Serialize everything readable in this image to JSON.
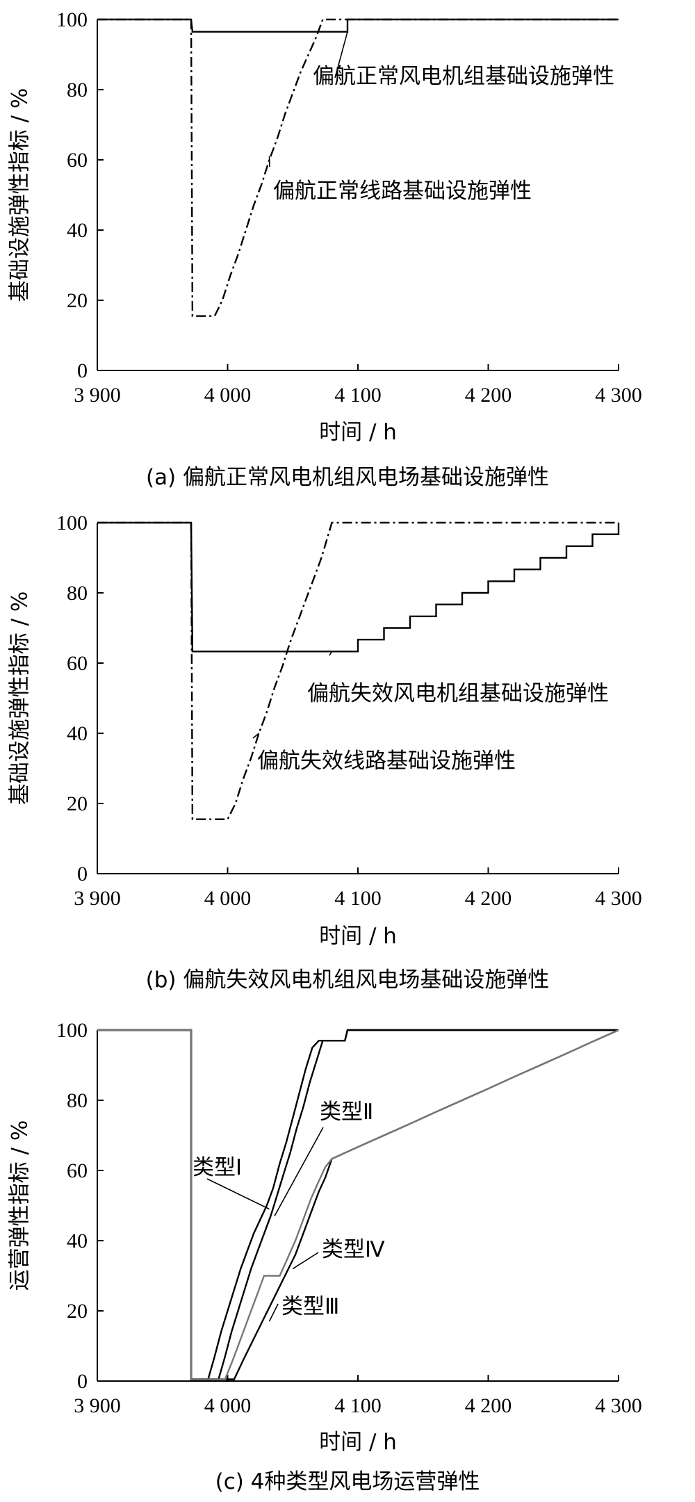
{
  "chart_data": [
    {
      "type": "line",
      "caption": "(a)  偏航正常风电机组风电场基础设施弹性",
      "xlabel": "时间 / h",
      "ylabel": "基础设施弹性指标 / %",
      "xlim": [
        3900,
        4300
      ],
      "ylim": [
        0,
        100
      ],
      "xticks": [
        3900,
        4000,
        4100,
        4200,
        4300
      ],
      "xtick_labels": [
        "3 900",
        "4 000",
        "4 100",
        "4 200",
        "4 300"
      ],
      "yticks": [
        0,
        20,
        40,
        60,
        80,
        100
      ],
      "ytick_labels": [
        "0",
        "20",
        "40",
        "60",
        "80",
        "100"
      ],
      "grid": false,
      "series": [
        {
          "name": "偏航正常风电机组基础设施弹性",
          "style": "solid",
          "x": [
            3900,
            3972,
            3973,
            4092,
            4092,
            4300
          ],
          "y": [
            100,
            100,
            96.5,
            96.5,
            100,
            100
          ]
        },
        {
          "name": "偏航正常线路基础设施弹性",
          "style": "dashdot",
          "x": [
            3900,
            3972,
            3973,
            3990,
            3996,
            4002,
            4008,
            4014,
            4020,
            4026,
            4032,
            4038,
            4044,
            4050,
            4056,
            4062,
            4068,
            4073,
            4300
          ],
          "y": [
            100,
            100,
            15.5,
            15.5,
            20,
            27,
            33,
            40,
            47,
            53,
            60,
            66,
            73,
            79,
            85,
            90,
            95,
            100,
            100
          ]
        }
      ],
      "annotations": [
        {
          "text": "偏航正常风电机组基础设施弹性",
          "x": 4092,
          "y": 96.5
        },
        {
          "text": "偏航正常线路基础设施弹性",
          "x": 4032,
          "y": 61
        }
      ]
    },
    {
      "type": "line",
      "caption": "(b)  偏航失效风电机组风电场基础设施弹性",
      "xlabel": "时间 / h",
      "ylabel": "基础设施弹性指标 / %",
      "xlim": [
        3900,
        4300
      ],
      "ylim": [
        0,
        100
      ],
      "xticks": [
        3900,
        4000,
        4100,
        4200,
        4300
      ],
      "xtick_labels": [
        "3 900",
        "4 000",
        "4 100",
        "4 200",
        "4 300"
      ],
      "yticks": [
        0,
        20,
        40,
        60,
        80,
        100
      ],
      "ytick_labels": [
        "0",
        "20",
        "40",
        "60",
        "80",
        "100"
      ],
      "grid": false,
      "series": [
        {
          "name": "偏航失效风电机组基础设施弹性",
          "style": "solid",
          "x": [
            3900,
            3972,
            3973,
            4100,
            4100,
            4120,
            4120,
            4140,
            4140,
            4160,
            4160,
            4180,
            4180,
            4200,
            4200,
            4220,
            4220,
            4240,
            4240,
            4260,
            4260,
            4280,
            4280,
            4300,
            4300
          ],
          "y": [
            100,
            100,
            63.3,
            63.3,
            66.7,
            66.7,
            70,
            70,
            73.3,
            73.3,
            76.7,
            76.7,
            80,
            80,
            83.3,
            83.3,
            86.7,
            86.7,
            90,
            90,
            93.3,
            93.3,
            96.7,
            96.7,
            100
          ]
        },
        {
          "name": "偏航失效线路基础设施弹性",
          "style": "dashdot",
          "x": [
            3900,
            3972,
            3973,
            4000,
            4006,
            4012,
            4018,
            4024,
            4030,
            4036,
            4042,
            4048,
            4054,
            4060,
            4066,
            4072,
            4080,
            4300
          ],
          "y": [
            100,
            100,
            15.5,
            15.5,
            20,
            27,
            33,
            40,
            46,
            53,
            59,
            66,
            72,
            78,
            84,
            90,
            100,
            100
          ]
        }
      ],
      "annotations": [
        {
          "text": "偏航失效风电机组基础设施弹性",
          "x": 4080,
          "y": 63.3
        },
        {
          "text": "偏航失效线路基础设施弹性",
          "x": 4024,
          "y": 40
        }
      ]
    },
    {
      "type": "line",
      "caption": "(c)  4种类型风电场运营弹性",
      "xlabel": "时间 / h",
      "ylabel": "运营弹性指标 / %",
      "xlim": [
        3900,
        4300
      ],
      "ylim": [
        0,
        100
      ],
      "xticks": [
        3900,
        4000,
        4100,
        4200,
        4300
      ],
      "xtick_labels": [
        "3 900",
        "4 000",
        "4 100",
        "4 200",
        "4 300"
      ],
      "yticks": [
        0,
        20,
        40,
        60,
        80,
        100
      ],
      "ytick_labels": [
        "0",
        "20",
        "40",
        "60",
        "80",
        "100"
      ],
      "grid": false,
      "series": [
        {
          "name": "类型Ⅰ",
          "color": "#000000",
          "x": [
            3900,
            3972,
            3972,
            3985,
            3990,
            3995,
            4000,
            4005,
            4010,
            4015,
            4020,
            4025,
            4030,
            4035,
            4040,
            4045,
            4050,
            4055,
            4060,
            4065,
            4070,
            4073,
            4090,
            4092,
            4300
          ],
          "y": [
            100,
            100,
            0.5,
            0.5,
            7,
            14,
            20,
            26,
            32,
            37,
            42,
            46,
            50,
            55,
            62,
            68,
            75,
            82,
            89,
            95,
            97,
            97,
            97,
            100,
            100
          ]
        },
        {
          "name": "类型Ⅱ",
          "color": "#000000",
          "x": [
            3900,
            3972,
            3972,
            3993,
            3998,
            4003,
            4008,
            4013,
            4018,
            4023,
            4028,
            4033,
            4038,
            4043,
            4048,
            4053,
            4058,
            4063,
            4068,
            4073,
            4090,
            4092,
            4300
          ],
          "y": [
            100,
            100,
            0.5,
            0.5,
            7,
            14,
            20,
            26,
            32,
            37,
            42,
            47,
            53,
            59,
            65,
            72,
            78,
            85,
            91,
            97,
            97,
            100,
            100
          ]
        },
        {
          "name": "类型Ⅲ",
          "color": "#000000",
          "x": [
            3900,
            3972,
            3972,
            4005,
            4012,
            4020,
            4028,
            4036,
            4044,
            4052,
            4058,
            4064,
            4070,
            4075,
            4080,
            4100,
            4120,
            4140,
            4160,
            4180,
            4200,
            4220,
            4240,
            4260,
            4280,
            4300
          ],
          "y": [
            100,
            100,
            0.5,
            0.5,
            6,
            12,
            18,
            24,
            30,
            36,
            42,
            48,
            54,
            58,
            63.3,
            66.7,
            70,
            73.3,
            76.7,
            80,
            83.3,
            86.7,
            90,
            93.3,
            96.7,
            100
          ]
        },
        {
          "name": "类型Ⅳ",
          "color": "#777777",
          "x": [
            3900,
            3972,
            3972,
            3998,
            4004,
            4010,
            4016,
            4022,
            4028,
            4040,
            4046,
            4052,
            4058,
            4064,
            4070,
            4075,
            4080,
            4100,
            4120,
            4140,
            4160,
            4180,
            4200,
            4220,
            4240,
            4260,
            4280,
            4300
          ],
          "y": [
            100,
            100,
            0.5,
            0.5,
            6,
            12,
            18,
            24,
            30,
            30,
            35,
            40,
            46,
            52,
            57,
            61,
            63.3,
            66.7,
            70,
            73.3,
            76.7,
            80,
            83.3,
            86.7,
            90,
            93.3,
            96.7,
            100
          ]
        }
      ],
      "annotations": [
        {
          "text": "类型Ⅰ",
          "x": 4032,
          "y": 49
        },
        {
          "text": "类型Ⅱ",
          "x": 4036,
          "y": 47
        },
        {
          "text": "类型Ⅲ",
          "x": 4032,
          "y": 17
        },
        {
          "text": "类型Ⅳ",
          "x": 4050,
          "y": 32
        }
      ]
    }
  ]
}
